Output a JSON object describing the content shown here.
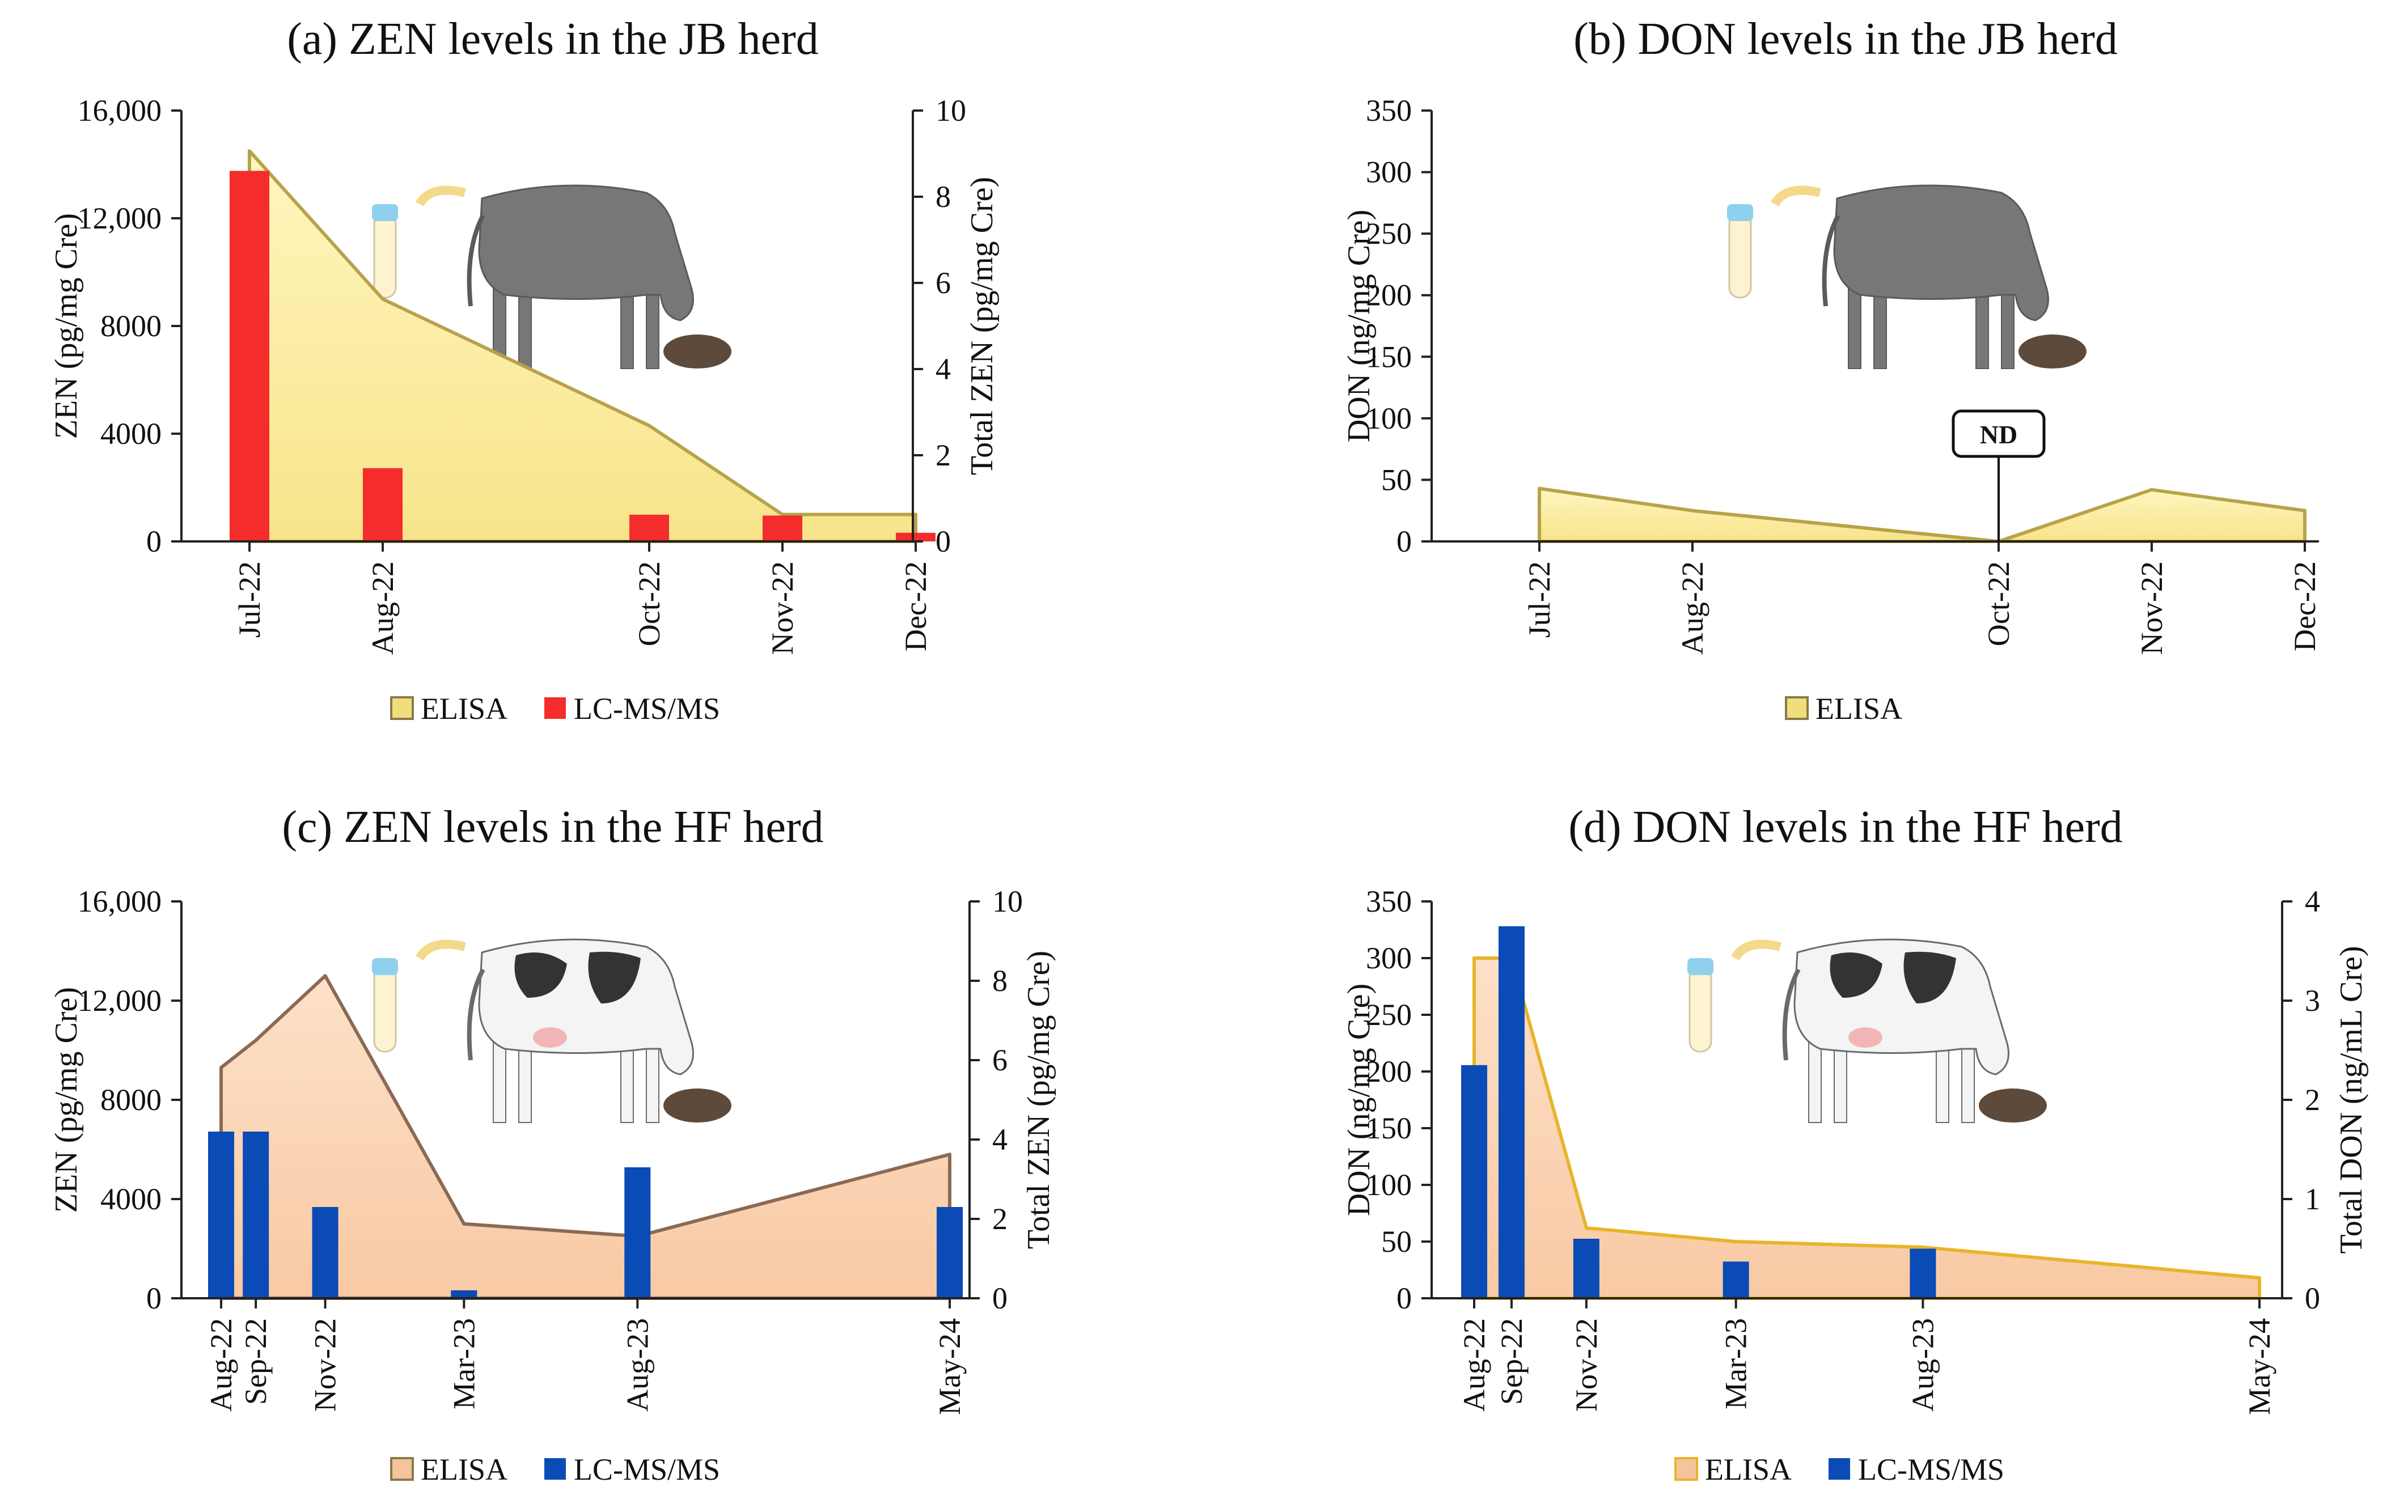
{
  "colors": {
    "elisa_jb": "#fdf0a4",
    "elisa_jb_edge": "#b8a24a",
    "elisa_hf": "#fbd6b8",
    "elisa_hf_edge": "#8a6a55",
    "elisa_d_edge": "#e8b42a",
    "lcms_red": "#f42c2c",
    "lcms_blue": "#0b4bb5",
    "cow_gray": "#777777"
  },
  "chart_data": [
    {
      "id": "a",
      "type": "area+bar",
      "title": "(a) ZEN levels in the JB herd",
      "ylabel": "ZEN (pg/mg Cre)",
      "y2label": "Total ZEN (pg/mg Cre)",
      "ylim": [
        0,
        16000
      ],
      "y2lim": [
        0,
        10
      ],
      "yticks": [
        "0",
        "4000",
        "8000",
        "12,000",
        "16,000"
      ],
      "y2ticks": [
        "0",
        "2",
        "4",
        "6",
        "8",
        "10"
      ],
      "categories": [
        "Jul-22",
        "Aug-22",
        "Oct-22",
        "Nov-22",
        "Dec-22"
      ],
      "cat_pos": [
        0,
        1,
        3,
        4,
        5
      ],
      "series": [
        {
          "name": "ELISA",
          "kind": "area",
          "axis": "left",
          "values": [
            14500,
            9000,
            4300,
            1000,
            1000
          ]
        },
        {
          "name": "LC-MS/MS",
          "kind": "bar",
          "axis": "right",
          "values": [
            8.6,
            1.7,
            0.62,
            0.6,
            0.2
          ]
        }
      ],
      "legend": [
        "ELISA",
        "LC-MS/MS"
      ]
    },
    {
      "id": "b",
      "type": "area",
      "title": "(b) DON levels in the JB herd",
      "ylabel": "DON (ng/mg Cre)",
      "ylim": [
        0,
        350
      ],
      "yticks": [
        "0",
        "50",
        "100",
        "150",
        "200",
        "250",
        "300",
        "350"
      ],
      "categories": [
        "Jul-22",
        "Aug-22",
        "Oct-22",
        "Nov-22",
        "Dec-22"
      ],
      "cat_pos": [
        0,
        1,
        3,
        4,
        5
      ],
      "series": [
        {
          "name": "ELISA",
          "kind": "area",
          "axis": "left",
          "values": [
            43,
            25,
            0,
            42,
            25
          ]
        }
      ],
      "annotations": [
        {
          "text": "ND",
          "category": "Oct-22"
        }
      ],
      "legend": [
        "ELISA"
      ]
    },
    {
      "id": "c",
      "type": "area+bar",
      "title": "(c) ZEN levels in the HF herd",
      "ylabel": "ZEN (pg/mg Cre)",
      "y2label": "Total ZEN (pg/mg Cre)",
      "ylim": [
        0,
        16000
      ],
      "y2lim": [
        0,
        10
      ],
      "yticks": [
        "0",
        "4000",
        "8000",
        "12,000",
        "16,000"
      ],
      "y2ticks": [
        "0",
        "2",
        "4",
        "6",
        "8",
        "10"
      ],
      "categories": [
        "Aug-22",
        "Sep-22",
        "Nov-22",
        "Mar-23",
        "Aug-23",
        "May-24"
      ],
      "cat_pos": [
        0,
        1,
        3,
        7,
        12,
        21
      ],
      "series": [
        {
          "name": "ELISA",
          "kind": "area",
          "axis": "left",
          "values": [
            9300,
            10400,
            13000,
            3000,
            2500,
            5800
          ]
        },
        {
          "name": "LC-MS/MS",
          "kind": "bar",
          "axis": "right",
          "values": [
            4.2,
            4.2,
            2.3,
            0.2,
            3.3,
            2.3
          ]
        }
      ],
      "legend": [
        "ELISA",
        "LC-MS/MS"
      ]
    },
    {
      "id": "d",
      "type": "area+bar",
      "title": "(d) DON levels in the HF herd",
      "ylabel": "DON (ng/mg Cre)",
      "y2label": "Total DON (ng/mL Cre)",
      "ylim": [
        0,
        350
      ],
      "y2lim": [
        0,
        4
      ],
      "yticks": [
        "0",
        "50",
        "100",
        "150",
        "200",
        "250",
        "300",
        "350"
      ],
      "y2ticks": [
        "0",
        "1",
        "2",
        "3",
        "4"
      ],
      "categories": [
        "Aug-22",
        "Sep-22",
        "Nov-22",
        "Mar-23",
        "Aug-23",
        "May-24"
      ],
      "cat_pos": [
        0,
        1,
        3,
        7,
        12,
        21
      ],
      "series": [
        {
          "name": "ELISA",
          "kind": "area",
          "axis": "left",
          "values": [
            300,
            300,
            62,
            50,
            45,
            18
          ]
        },
        {
          "name": "LC-MS/MS",
          "kind": "bar",
          "axis": "right",
          "values": [
            2.35,
            3.75,
            0.6,
            0.37,
            0.5,
            0
          ]
        }
      ],
      "legend": [
        "ELISA",
        "LC-MS/MS"
      ]
    }
  ]
}
